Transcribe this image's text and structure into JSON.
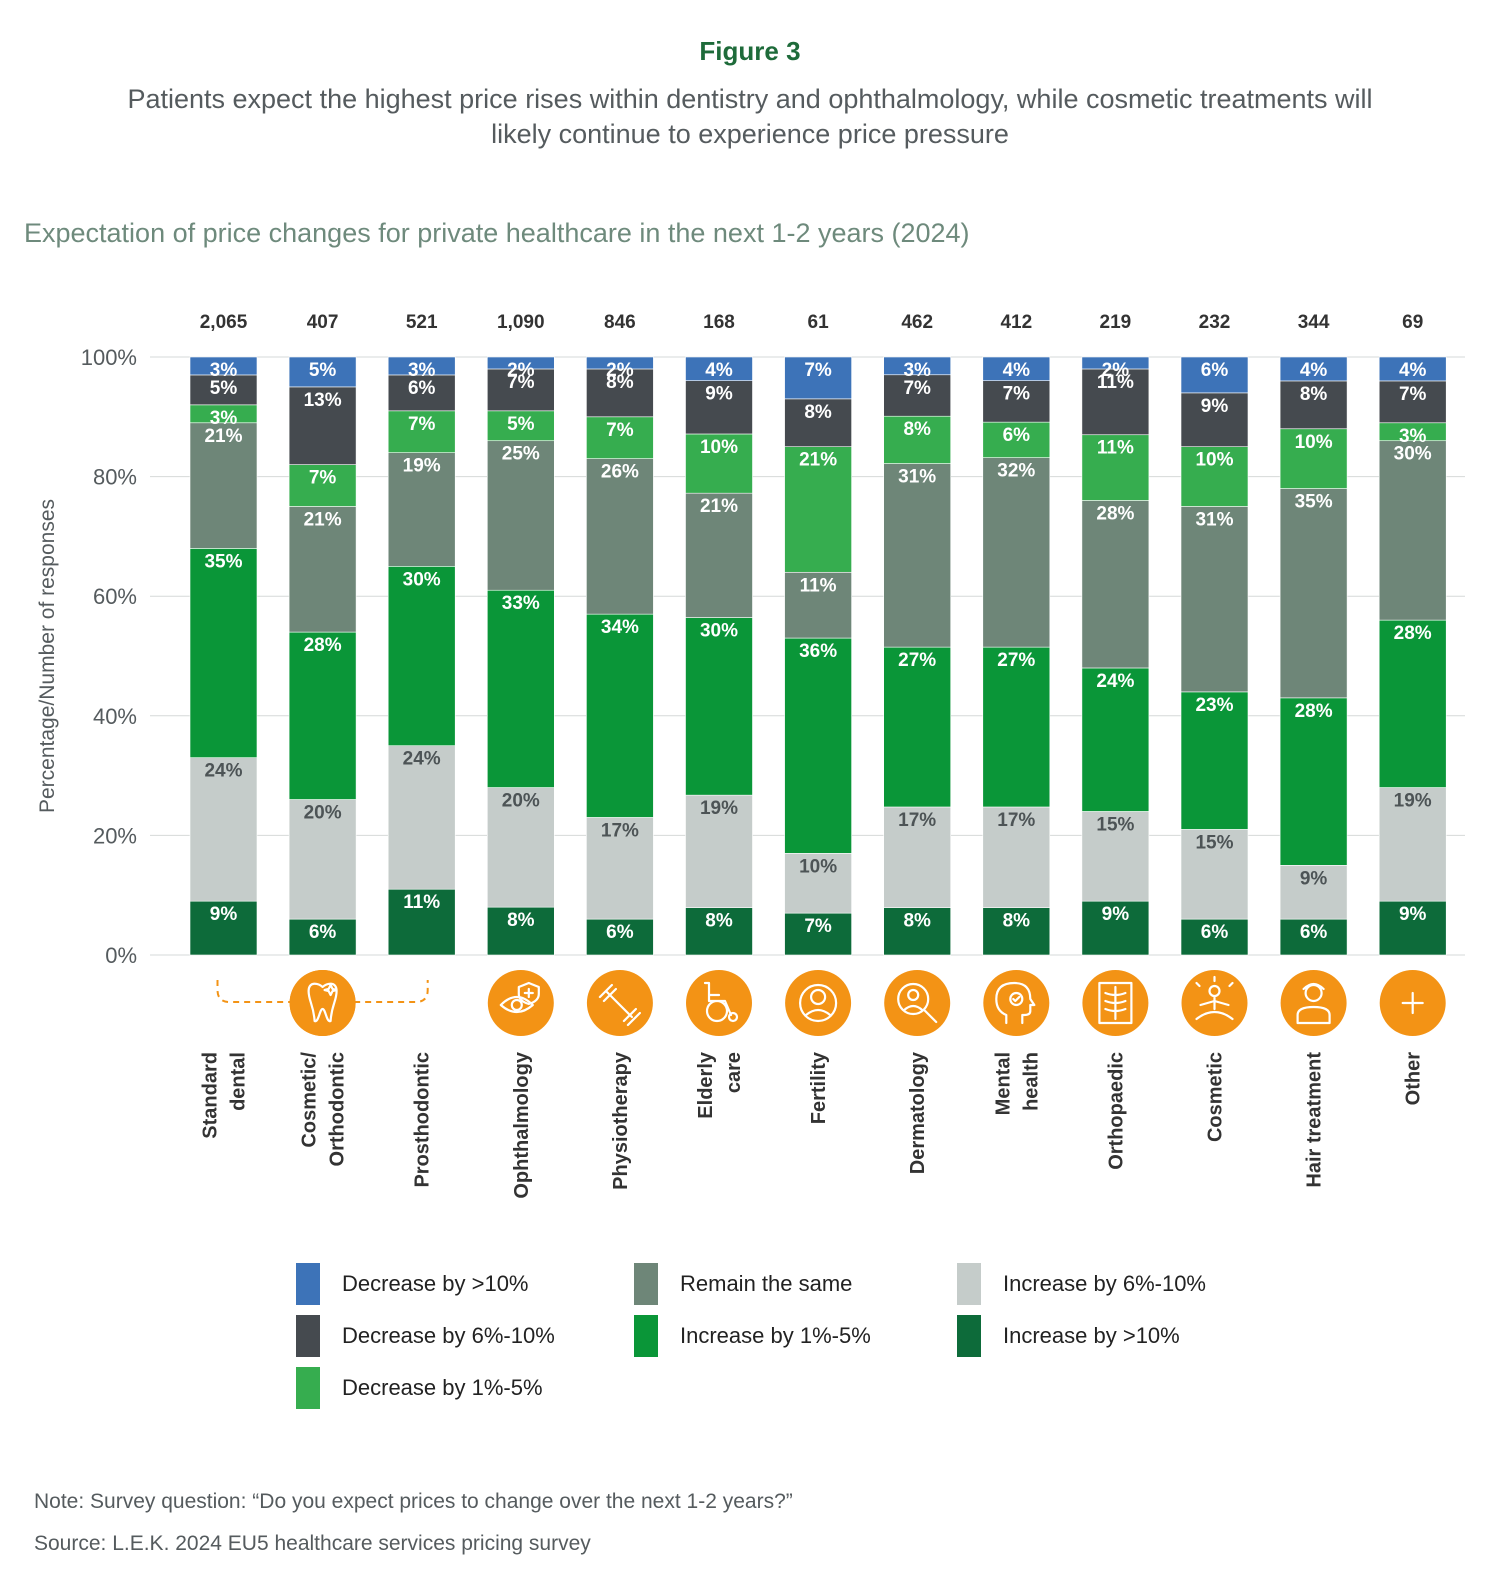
{
  "figure_label": "Figure 3",
  "headline": "Patients expect the highest price rises within dentistry and ophthalmology, while cosmetic treatments will likely continue to experience price pressure",
  "note": "Note: Survey question: “Do you expect prices to change over the next 1-2 years?”",
  "source": "Source: L.E.K. 2024 EU5 healthcare services pricing survey",
  "colors": {
    "decrease_gt10": "#3d73b8",
    "decrease_6_10": "#454a4f",
    "decrease_1_5": "#36ad4f",
    "remain": "#6e8678",
    "increase_1_5": "#0a9638",
    "increase_6_10": "#c5ccca",
    "increase_gt10": "#0d6b3a",
    "icon_bg": "#f39315"
  },
  "chart_data": {
    "type": "bar",
    "stacked": true,
    "title": "Expectation of price changes for private healthcare in the next 1-2 years (2024)",
    "ylabel": "Percentage/Number of responses",
    "ylim": [
      0,
      100
    ],
    "yticks": [
      "0%",
      "20%",
      "40%",
      "60%",
      "80%",
      "100%"
    ],
    "grid": true,
    "legend_position": "bottom",
    "categories": [
      "Standard dental",
      "Cosmetic/ Orthodontic",
      "Prosthodontic",
      "Ophthalmology",
      "Physiotherapy",
      "Elderly care",
      "Fertility",
      "Dermatology",
      "Mental health",
      "Orthopaedic",
      "Cosmetic",
      "Hair treatment",
      "Other"
    ],
    "icons": [
      "tooth-icon",
      "tooth-icon",
      "tooth-icon",
      "eye-icon",
      "dumbbell-icon",
      "wheelchair-icon",
      "baby-icon",
      "magnifier-icon",
      "head-icon",
      "xray-icon",
      "meditation-icon",
      "person-icon",
      "plus-icon"
    ],
    "responses": [
      "2,065",
      "407",
      "521",
      "1,090",
      "846",
      "168",
      "61",
      "462",
      "412",
      "219",
      "232",
      "344",
      "69"
    ],
    "series": [
      {
        "name": "Increase by >10%",
        "color": "#0d6b3a",
        "values": [
          9,
          6,
          11,
          8,
          6,
          8,
          7,
          8,
          8,
          9,
          6,
          6,
          9
        ]
      },
      {
        "name": "Increase by 6%-10%",
        "color": "#c5ccca",
        "values": [
          24,
          20,
          24,
          20,
          17,
          19,
          10,
          17,
          17,
          15,
          15,
          9,
          19
        ]
      },
      {
        "name": "Increase by 1%-5%",
        "color": "#0a9638",
        "values": [
          35,
          28,
          30,
          33,
          34,
          30,
          36,
          27,
          27,
          24,
          23,
          28,
          28
        ]
      },
      {
        "name": "Remain the same",
        "color": "#6e8678",
        "values": [
          21,
          21,
          19,
          25,
          26,
          21,
          11,
          31,
          32,
          28,
          31,
          35,
          30
        ]
      },
      {
        "name": "Decrease by 1%-5%",
        "color": "#36ad4f",
        "values": [
          3,
          7,
          7,
          5,
          7,
          10,
          21,
          8,
          6,
          11,
          10,
          10,
          3
        ]
      },
      {
        "name": "Decrease by 6%-10%",
        "color": "#454a4f",
        "values": [
          5,
          13,
          6,
          7,
          8,
          9,
          8,
          7,
          7,
          11,
          9,
          8,
          7
        ]
      },
      {
        "name": "Decrease by >10%",
        "color": "#3d73b8",
        "values": [
          3,
          5,
          3,
          2,
          2,
          4,
          7,
          3,
          4,
          2,
          6,
          4,
          4
        ]
      }
    ]
  },
  "legend": [
    {
      "label": "Decrease by >10%",
      "color": "#3d73b8"
    },
    {
      "label": "Remain the same",
      "color": "#6e8678"
    },
    {
      "label": "Increase by 6%-10%",
      "color": "#c5ccca"
    },
    {
      "label": "Decrease by 6%-10%",
      "color": "#454a4f"
    },
    {
      "label": "Increase by 1%-5%",
      "color": "#0a9638"
    },
    {
      "label": "Increase by >10%",
      "color": "#0d6b3a"
    },
    {
      "label": "Decrease by 1%-5%",
      "color": "#36ad4f"
    }
  ]
}
